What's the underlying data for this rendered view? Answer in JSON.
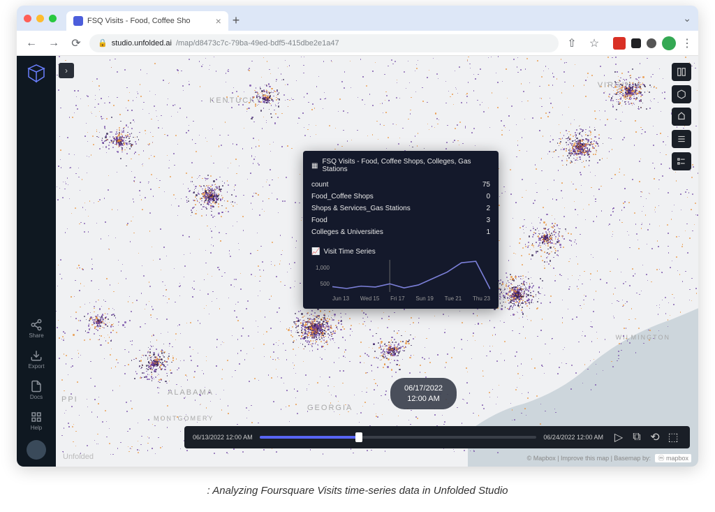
{
  "browser": {
    "tab_title": "FSQ Visits - Food, Coffee Sho",
    "url_domain": "studio.unfolded.ai",
    "url_path": "/map/d8473c7c-79ba-49ed-bdf5-415dbe2e1a47"
  },
  "sidebar": {
    "share": "Share",
    "export": "Export",
    "docs": "Docs",
    "help": "Help"
  },
  "map_labels": {
    "kentucky": "KENTUCKY",
    "virginia": "VIRGINIA",
    "alabama": "ALABAMA",
    "georgia": "GEORGIA",
    "wilmington": "WILMINGTON",
    "mississippi": "PPI",
    "montgomery": "MONTGOMERY"
  },
  "tooltip": {
    "title": "FSQ Visits - Food, Coffee Shops, Colleges, Gas Stations",
    "rows": [
      {
        "label": "count",
        "value": "75"
      },
      {
        "label": "Food_Coffee Shops",
        "value": "0"
      },
      {
        "label": "Shops & Services_Gas Stations",
        "value": "2"
      },
      {
        "label": "Food",
        "value": "3"
      },
      {
        "label": "Colleges & Universities",
        "value": "1"
      }
    ],
    "section_title": "Visit Time Series",
    "chart": {
      "yticks": [
        "1,000",
        "500"
      ],
      "xticks": [
        "Jun 13",
        "Wed 15",
        "Fri 17",
        "Sun 19",
        "Tue 21",
        "Thu 23"
      ],
      "line_color": "#7b7fd8",
      "values": [
        180,
        120,
        200,
        170,
        280,
        140,
        240,
        460,
        680,
        1000,
        1050,
        100
      ],
      "ymax": 1100,
      "marker_x": 4
    }
  },
  "date_badge": {
    "date": "06/17/2022",
    "time": "12:00 AM"
  },
  "timeline": {
    "start": "06/13/2022 12:00 AM",
    "end": "06/24/2022 12:00 AM",
    "progress_pct": 36
  },
  "attribution": "© Mapbox | Improve this map | Basemap by:",
  "watermark": "Unfolded",
  "caption": ": Analyzing Foursquare Visits time-series data in Unfolded Studio",
  "colors": {
    "dot_purple": "#6b3fa0",
    "dot_orange": "#e88c30",
    "dot_dark": "#2a1a4a",
    "map_bg": "#f0f1f3",
    "coast": "#cdd6dc"
  }
}
